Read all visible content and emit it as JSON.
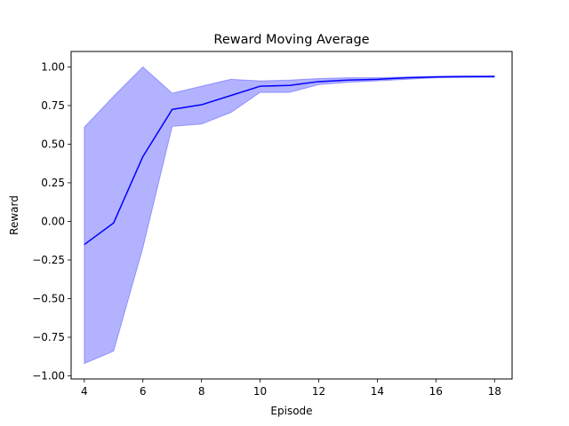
{
  "chart_data": {
    "type": "line",
    "title": "Reward Moving Average",
    "xlabel": "Episode",
    "ylabel": "Reward",
    "xlim": [
      3.55,
      18.6
    ],
    "ylim": [
      -1.02,
      1.1
    ],
    "xticks": [
      4,
      6,
      8,
      10,
      12,
      14,
      16,
      18
    ],
    "yticks": [
      -1.0,
      -0.75,
      -0.5,
      -0.25,
      0.0,
      0.25,
      0.5,
      0.75,
      1.0
    ],
    "ytick_labels": [
      "−1.00",
      "−0.75",
      "−0.50",
      "−0.25",
      "0.00",
      "0.25",
      "0.50",
      "0.75",
      "1.00"
    ],
    "grid": false,
    "series": [
      {
        "x": [
          4,
          5,
          6,
          7,
          8,
          9,
          10,
          11,
          12,
          13,
          14,
          15,
          16,
          17,
          18
        ],
        "mean": [
          -0.15,
          -0.01,
          0.42,
          0.725,
          0.755,
          0.815,
          0.875,
          0.88,
          0.905,
          0.915,
          0.92,
          0.93,
          0.935,
          0.937,
          0.938
        ],
        "upper": [
          0.61,
          0.81,
          1.0,
          0.83,
          0.875,
          0.92,
          0.91,
          0.915,
          0.925,
          0.93,
          0.93,
          0.935,
          0.94,
          0.942,
          0.943
        ],
        "lower": [
          -0.92,
          -0.84,
          -0.17,
          0.615,
          0.63,
          0.705,
          0.835,
          0.835,
          0.885,
          0.9,
          0.91,
          0.92,
          0.93,
          0.932,
          0.933
        ],
        "line_color": "#0000ff",
        "band_color": "#0000ff"
      }
    ]
  }
}
